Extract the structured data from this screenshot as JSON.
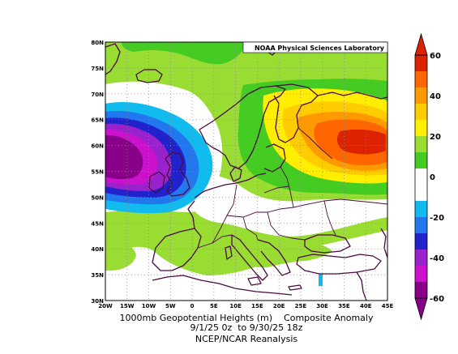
{
  "map": {
    "credit": "NOAA Physical Sciences Laboratory",
    "lat_labels": [
      "80N",
      "75N",
      "70N",
      "65N",
      "60N",
      "55N",
      "50N",
      "45N",
      "40N",
      "35N",
      "30N"
    ],
    "lon_labels": [
      "20W",
      "15W",
      "10W",
      "5W",
      "0",
      "5E",
      "10E",
      "15E",
      "20E",
      "25E",
      "30E",
      "35E",
      "40E",
      "45E"
    ],
    "lat_range": [
      30,
      80
    ],
    "lon_range": [
      -20,
      45
    ],
    "grid": "dotted"
  },
  "colorbar": {
    "tick_labels": [
      "60",
      "40",
      "20",
      "0",
      "-20",
      "-40",
      "-60"
    ],
    "colors": [
      "#dd2200",
      "#ff6600",
      "#ff9900",
      "#ffcc00",
      "#ffee00",
      "#99dd33",
      "#44cc22",
      "#ffffff",
      "#ffffff",
      "#11bbee",
      "#2277ee",
      "#2222cc",
      "#9922cc",
      "#cc11cc",
      "#880088"
    ]
  },
  "caption": {
    "line1_left": "1000mb Geopotential Heights (m)",
    "line1_right": "Composite Anomaly",
    "line2": "9/1/25 0z  to 9/30/25 18z",
    "line3": "NCEP/NCAR Reanalysis"
  },
  "field_features": [
    {
      "label": "negative anomaly center",
      "lon": -17,
      "lat": 58,
      "level": "-60"
    },
    {
      "label": "positive anomaly center",
      "lon": 40,
      "lat": 61,
      "level": "40"
    }
  ]
}
